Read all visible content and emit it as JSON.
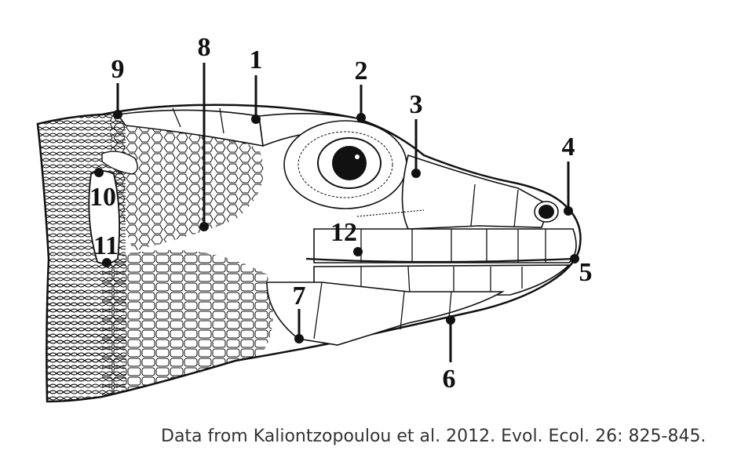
{
  "figure": {
    "caption": "Data from Kaliontzopoulou et al. 2012. Evol. Ecol. 26: 825-845."
  },
  "landmarks": [
    {
      "id": "1",
      "label": "1"
    },
    {
      "id": "2",
      "label": "2"
    },
    {
      "id": "3",
      "label": "3"
    },
    {
      "id": "4",
      "label": "4"
    },
    {
      "id": "5",
      "label": "5"
    },
    {
      "id": "6",
      "label": "6"
    },
    {
      "id": "7",
      "label": "7"
    },
    {
      "id": "8",
      "label": "8"
    },
    {
      "id": "9",
      "label": "9"
    },
    {
      "id": "10",
      "label": "10"
    },
    {
      "id": "11",
      "label": "11"
    },
    {
      "id": "12",
      "label": "12"
    }
  ],
  "colors": {
    "ink": "#111111",
    "caption": "#333333",
    "background": "#ffffff"
  }
}
